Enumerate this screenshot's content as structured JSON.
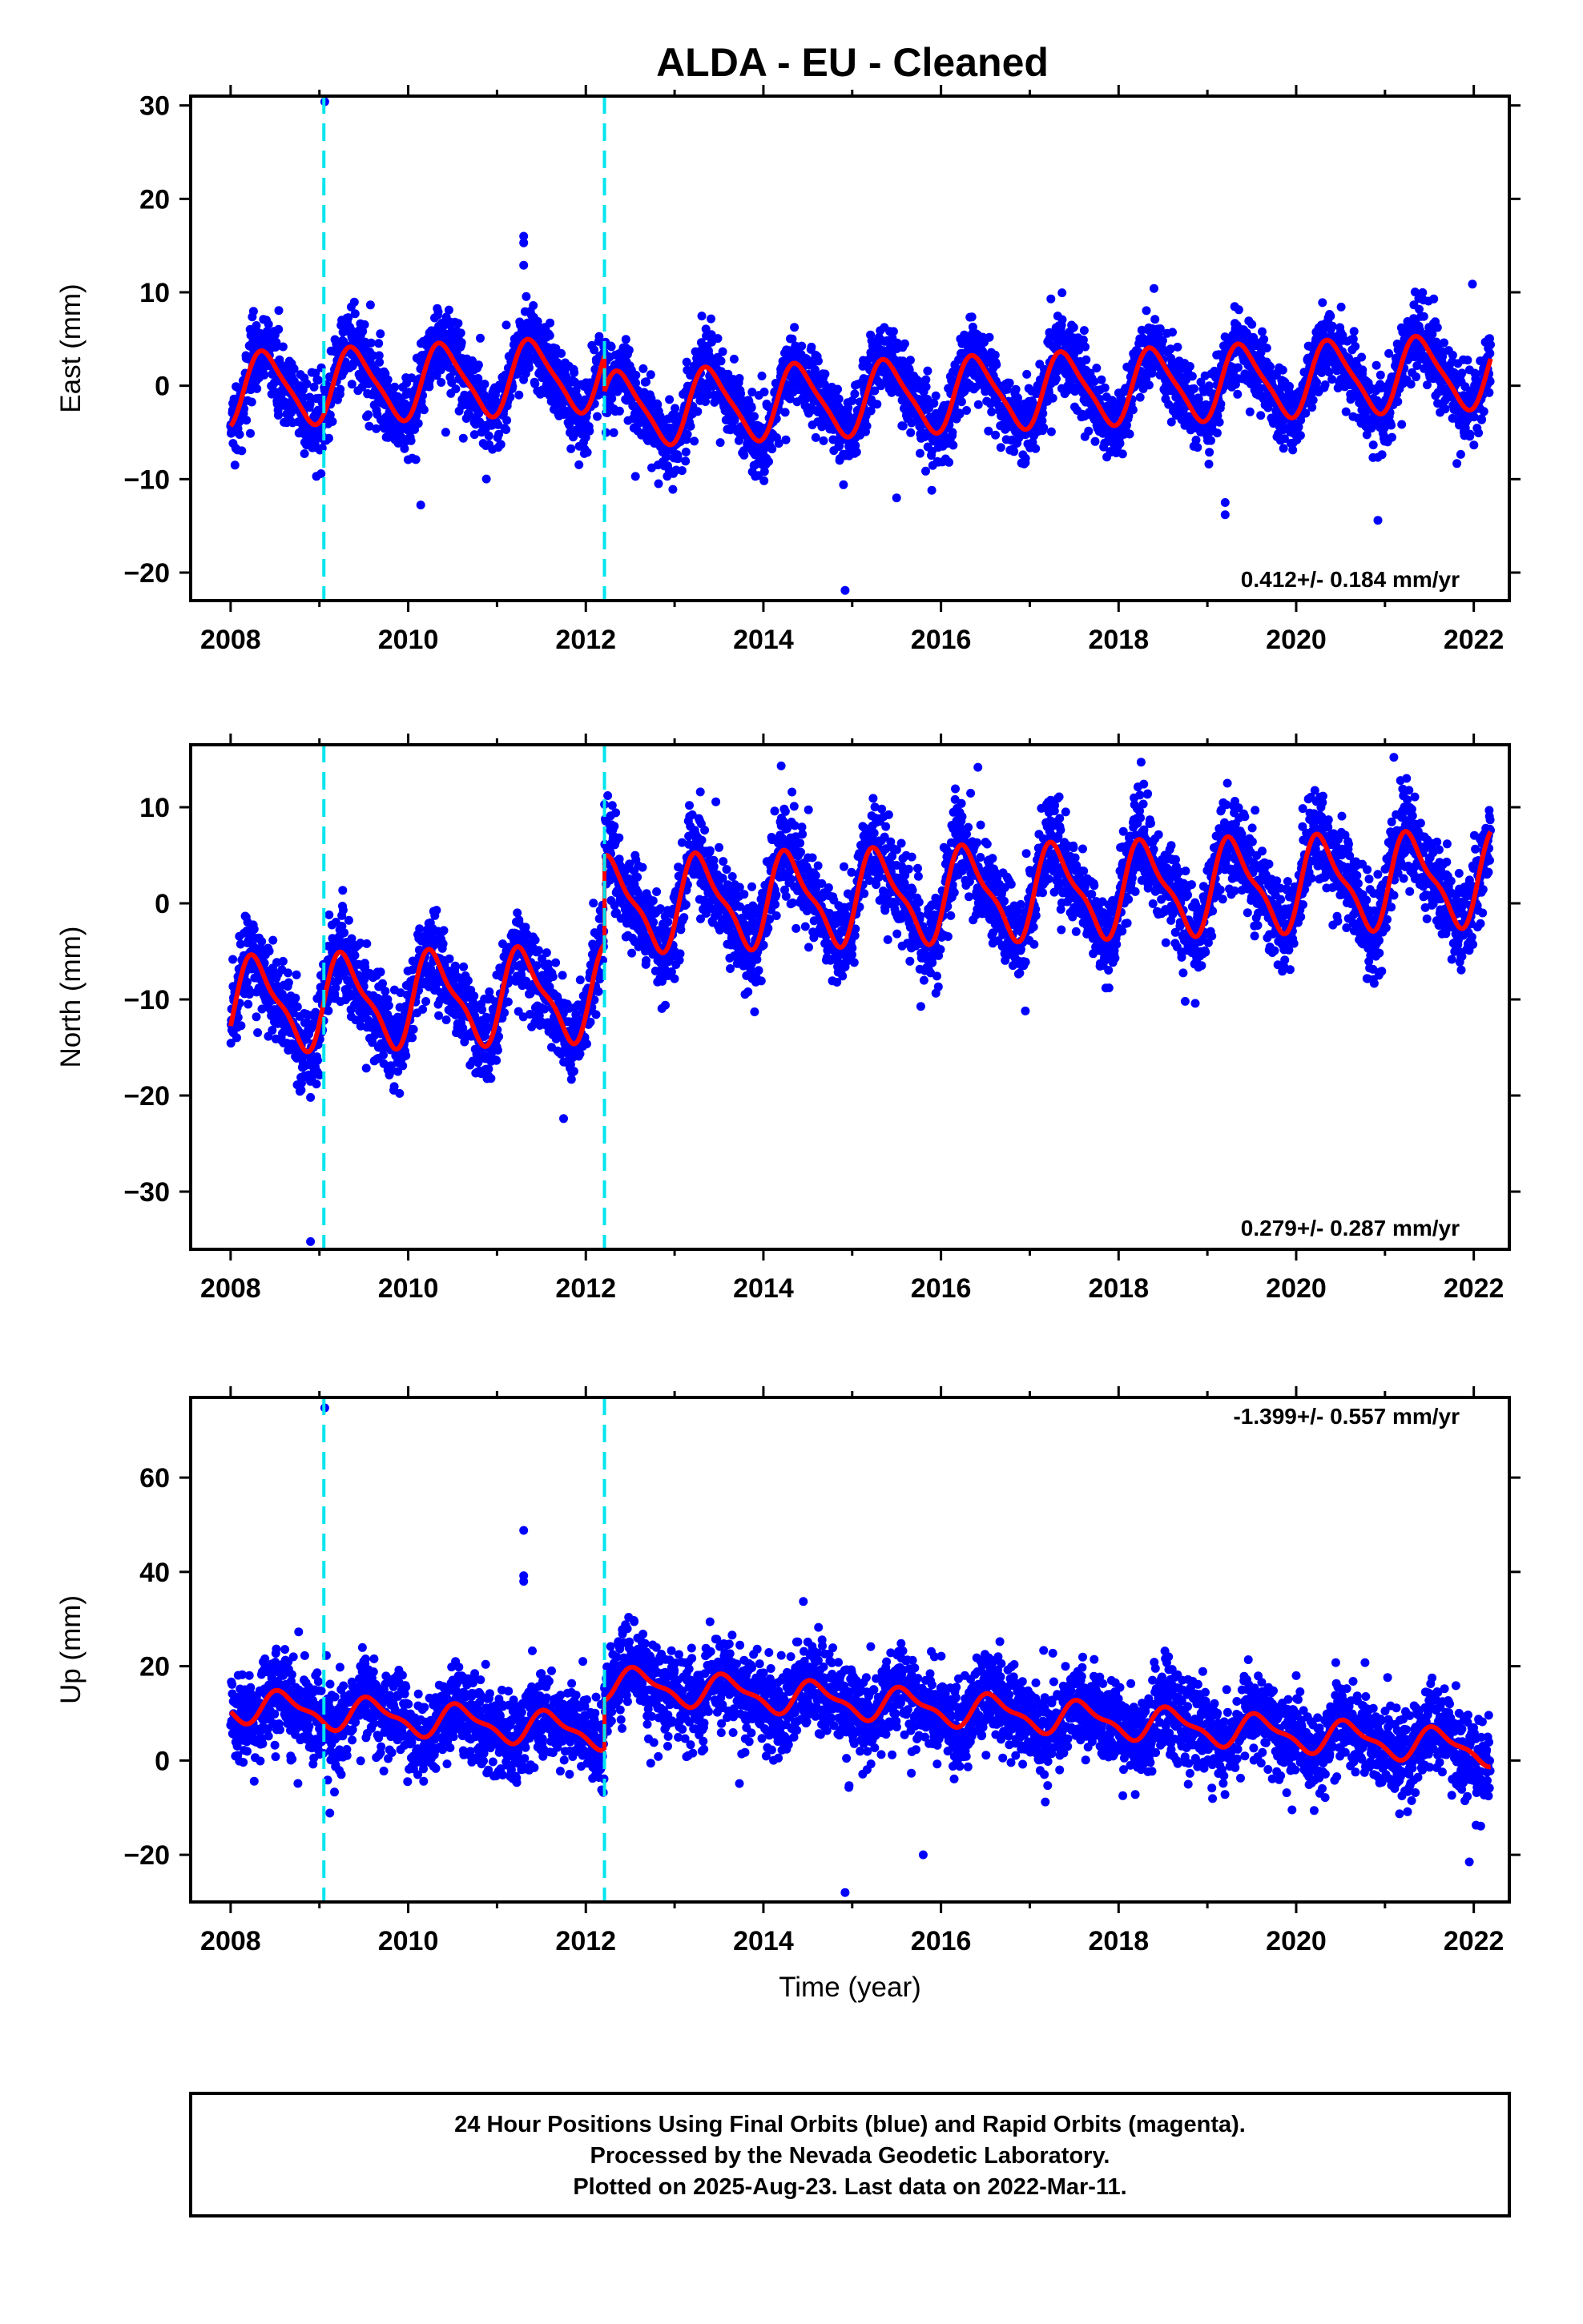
{
  "title": "ALDA  - EU - Cleaned",
  "footer": {
    "line1": "24 Hour Positions Using Final Orbits (blue) and Rapid Orbits (magenta).",
    "line2": "Processed by the Nevada Geodetic Laboratory.",
    "line3": "Plotted on 2025-Aug-23. Last data on 2022-Mar-11."
  },
  "colors": {
    "points": "#0000ff",
    "model": "#ff0000",
    "breaks": "#00e5ee",
    "frame": "#000000"
  },
  "chart_data": [
    {
      "type": "scatter",
      "ylabel": "East (mm)",
      "xlabel": "",
      "rate_label": "0.412+/- 0.184 mm/yr",
      "xlim": [
        2007.55,
        2022.4
      ],
      "ylim": [
        -23,
        31
      ],
      "xticks": [
        2008,
        2010,
        2012,
        2014,
        2016,
        2018,
        2020,
        2022
      ],
      "yticks": [
        -20,
        -10,
        0,
        10,
        20,
        30
      ],
      "ytick_labels": [
        "−20",
        "−10",
        "0",
        "10",
        "20",
        "30"
      ],
      "breaks": [
        2009.05,
        2012.21
      ],
      "model": {
        "segments": [
          {
            "start": 2008.0,
            "end": 2012.21,
            "offset": 2.4
          },
          {
            "start": 2012.21,
            "end": 2022.19,
            "offset": -1.4
          }
        ],
        "rate": 0.412,
        "annual_amp": 3.8,
        "annual_phase": 2008.15,
        "semi_amp": 0.8
      },
      "scatter_sigma": 2.0,
      "outliers": [
        [
          2009.06,
          30.4
        ],
        [
          2011.3,
          16.0
        ],
        [
          2011.3,
          15.3
        ],
        [
          2011.3,
          12.9
        ],
        [
          2014.92,
          -21.9
        ],
        [
          2019.2,
          -12.5
        ],
        [
          2019.2,
          -13.8
        ],
        [
          2020.92,
          -14.4
        ],
        [
          2015.5,
          -12.0
        ]
      ]
    },
    {
      "type": "scatter",
      "ylabel": "North (mm)",
      "xlabel": "",
      "rate_label": "0.279+/- 0.287 mm/yr",
      "xlim": [
        2007.55,
        2022.4
      ],
      "ylim": [
        -36,
        16.5
      ],
      "xticks": [
        2008,
        2010,
        2012,
        2014,
        2016,
        2018,
        2020,
        2022
      ],
      "yticks": [
        -30,
        -20,
        -10,
        0,
        10
      ],
      "ytick_labels": [
        "−30",
        "−20",
        "−10",
        "0",
        "10"
      ],
      "breaks": [
        2009.05,
        2012.21
      ],
      "model": {
        "segments": [
          {
            "start": 2008.0,
            "end": 2012.21,
            "offset": -8.6
          },
          {
            "start": 2012.21,
            "end": 2022.19,
            "offset": 0.6
          }
        ],
        "rate": 0.279,
        "annual_amp": 4.5,
        "annual_phase": 2008.05,
        "semi_amp": 1.4
      },
      "scatter_sigma": 2.3,
      "outliers": [
        [
          2008.9,
          -20.2
        ],
        [
          2008.9,
          -35.2
        ],
        [
          2011.75,
          -22.4
        ],
        [
          2014.2,
          14.3
        ],
        [
          2021.1,
          15.2
        ],
        [
          2018.75,
          -10.2
        ],
        [
          2016.95,
          -11.2
        ]
      ]
    },
    {
      "type": "scatter",
      "ylabel": "Up (mm)",
      "xlabel": "Time (year)",
      "rate_label": "-1.399+/- 0.557 mm/yr",
      "xlim": [
        2007.55,
        2022.4
      ],
      "ylim": [
        -30,
        77
      ],
      "xticks": [
        2008,
        2010,
        2012,
        2014,
        2016,
        2018,
        2020,
        2022
      ],
      "yticks": [
        -20,
        0,
        20,
        40,
        60
      ],
      "ytick_labels": [
        "−20",
        "0",
        "20",
        "40",
        "60"
      ],
      "breaks": [
        2009.05,
        2012.21
      ],
      "model": {
        "segments": [
          {
            "start": 2008.0,
            "end": 2012.21,
            "offset": 2.0
          },
          {
            "start": 2012.21,
            "end": 2022.19,
            "offset": 12.5
          }
        ],
        "rate": -1.399,
        "annual_amp": 3.2,
        "annual_phase": 2008.35,
        "semi_amp": 1.2
      },
      "scatter_sigma": 4.6,
      "outliers": [
        [
          2009.06,
          74.8
        ],
        [
          2011.3,
          48.8
        ],
        [
          2011.3,
          39.2
        ],
        [
          2011.3,
          38.0
        ],
        [
          2014.92,
          -28.0
        ],
        [
          2015.8,
          -20.0
        ],
        [
          2021.95,
          -21.5
        ],
        [
          2020.0,
          18.0
        ]
      ]
    }
  ]
}
